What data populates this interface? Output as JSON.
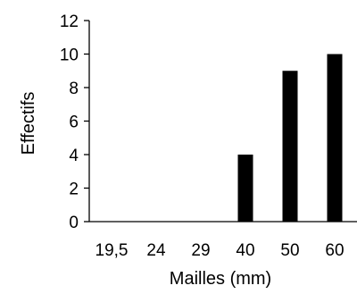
{
  "chart_data": {
    "type": "bar",
    "categories": [
      "19,5",
      "24",
      "29",
      "40",
      "50",
      "60"
    ],
    "values": [
      0,
      0,
      0,
      4,
      9,
      10
    ],
    "xlabel": "Mailles (mm)",
    "ylabel": "Effectifs",
    "ylim": [
      0,
      12
    ],
    "yticks": [
      0,
      2,
      4,
      6,
      8,
      10,
      12
    ],
    "grid": false,
    "bar_color": "#000000"
  }
}
